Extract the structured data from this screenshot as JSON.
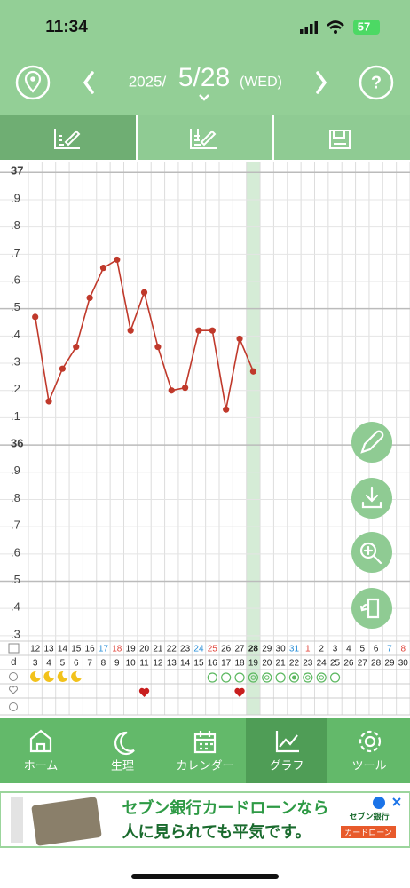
{
  "status_bar": {
    "time": "11:34",
    "battery": "57"
  },
  "header": {
    "year": "2025/",
    "date": "5/28",
    "weekday": "(WED)",
    "help": "?"
  },
  "chart_data": {
    "type": "line",
    "categories": [
      12,
      13,
      14,
      15,
      16,
      17,
      18,
      19,
      20,
      21,
      22,
      23,
      24,
      25,
      26,
      27,
      28,
      29,
      30,
      31,
      1,
      2,
      3,
      4,
      5,
      6,
      7,
      8
    ],
    "cycle_days": [
      3,
      4,
      5,
      6,
      7,
      8,
      9,
      10,
      11,
      12,
      13,
      14,
      15,
      16,
      17,
      18,
      19,
      20,
      21,
      22,
      23,
      24,
      25,
      26,
      27,
      28,
      29,
      30
    ],
    "series": [
      {
        "color": "#c0392b",
        "values": [
          36.47,
          36.16,
          36.28,
          36.36,
          36.54,
          36.65,
          36.68,
          36.42,
          36.56,
          36.36,
          36.2,
          36.21,
          36.42,
          36.42,
          36.13,
          36.39,
          36.27,
          null,
          null,
          null,
          null,
          null,
          null,
          null,
          null,
          null,
          null,
          null
        ]
      }
    ],
    "ylim": [
      35.28,
      37.04
    ],
    "yticks": [
      37,
      {
        "value": 36.9,
        "label": ".9"
      },
      {
        "value": 36.8,
        "label": ".8"
      },
      {
        "value": 36.7,
        "label": ".7"
      },
      {
        "value": 36.6,
        "label": ".6"
      },
      {
        "value": 36.5,
        "label": ".5"
      },
      {
        "value": 36.4,
        "label": ".4"
      },
      {
        "value": 36.3,
        "label": ".3"
      },
      {
        "value": 36.2,
        "label": ".2"
      },
      {
        "value": 36.1,
        "label": ".1"
      },
      36,
      {
        "value": 35.9,
        "label": ".9"
      },
      {
        "value": 35.8,
        "label": ".8"
      },
      {
        "value": 35.7,
        "label": ".7"
      },
      {
        "value": 35.6,
        "label": ".6"
      },
      {
        "value": 35.5,
        "label": ".5"
      },
      {
        "value": 35.4,
        "label": ".4"
      },
      {
        "value": 35.3,
        "label": ".3"
      }
    ],
    "grid": true,
    "row_label": "d"
  },
  "nav": {
    "items": [
      "ホーム",
      "生理",
      "カレンダー",
      "グラフ",
      "ツール"
    ]
  },
  "ad": {
    "line1": "セブン銀行カードローンなら",
    "line2": "人に見られても平気です。",
    "brand": "セブン銀行",
    "product": "カードローン"
  }
}
